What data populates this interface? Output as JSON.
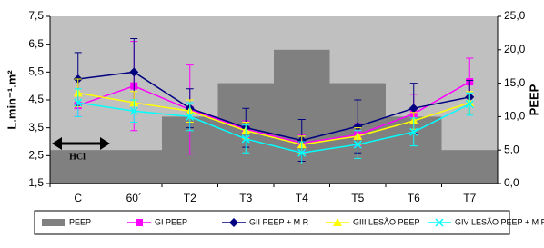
{
  "chart_data": {
    "type": "bar-line",
    "y_label": "L.min⁻¹.m²",
    "y2_label": "PEEP",
    "annotation": "HCl",
    "categories": [
      "C",
      "60´",
      "T2",
      "T3",
      "T4",
      "T5",
      "T6",
      "T7"
    ],
    "ylim": [
      1.5,
      7.5
    ],
    "yticks": [
      {
        "value": 1.5,
        "label": "1,5"
      },
      {
        "value": 2.5,
        "label": "2,5"
      },
      {
        "value": 3.5,
        "label": "3,5"
      },
      {
        "value": 4.5,
        "label": "4,5"
      },
      {
        "value": 5.5,
        "label": "5,5"
      },
      {
        "value": 6.5,
        "label": "6,5"
      },
      {
        "value": 7.5,
        "label": "7,5"
      }
    ],
    "y2lim": [
      0,
      25
    ],
    "y2ticks": [
      {
        "value": 0,
        "label": "0,0"
      },
      {
        "value": 5,
        "label": "5,0"
      },
      {
        "value": 10,
        "label": "10,0"
      },
      {
        "value": 15,
        "label": "15,0"
      },
      {
        "value": 20,
        "label": "20,0"
      },
      {
        "value": 25,
        "label": "25,0"
      }
    ],
    "grid": false,
    "series": [
      {
        "name": "PEEP",
        "kind": "bar",
        "axis": "y2",
        "color": "#808080",
        "values": [
          5,
          5,
          10,
          15,
          20,
          15,
          10,
          5
        ]
      },
      {
        "name": "GI PEEP",
        "kind": "line",
        "marker": "square",
        "color": "#ff00ff",
        "values": [
          4.3,
          5.0,
          4.15,
          3.45,
          2.95,
          3.25,
          4.0,
          5.15
        ],
        "errors": [
          0.4,
          1.6,
          1.6,
          0.3,
          0.3,
          0.4,
          0.7,
          0.85
        ]
      },
      {
        "name": "GII PEEP + M R",
        "kind": "line",
        "marker": "diamond",
        "color": "#000080",
        "values": [
          5.25,
          5.5,
          4.2,
          3.5,
          3.05,
          3.55,
          4.2,
          4.6
        ],
        "errors": [
          0.95,
          1.2,
          0.7,
          0.7,
          0.75,
          0.95,
          0.9,
          0.6
        ]
      },
      {
        "name": "GIII LESÃO PEEP",
        "kind": "line",
        "marker": "triangle",
        "color": "#ffff00",
        "values": [
          4.75,
          4.4,
          4.1,
          3.4,
          2.9,
          3.2,
          3.75,
          4.4
        ],
        "errors": [
          0.5,
          0.4,
          0.4,
          0.3,
          0.3,
          0.3,
          0.3,
          0.4
        ]
      },
      {
        "name": "GIV LESÃO PEEP + M R",
        "kind": "line",
        "marker": "x",
        "color": "#00ffff",
        "values": [
          4.4,
          4.1,
          3.9,
          3.1,
          2.6,
          2.9,
          3.35,
          4.35
        ],
        "errors": [
          0.5,
          0.4,
          0.5,
          0.5,
          0.4,
          0.5,
          0.5,
          0.4
        ]
      }
    ]
  }
}
